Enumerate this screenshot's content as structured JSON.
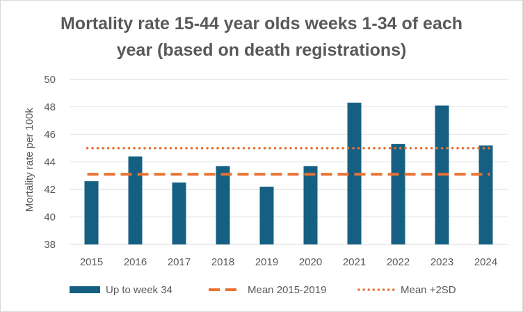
{
  "chart_data": {
    "type": "bar",
    "title_line1": "Mortality rate 15-44 year olds weeks 1-34 of each",
    "title_line2": "year (based on death registrations)",
    "ylabel": "Mortality rate per 100k",
    "xlabel": "",
    "ylim": [
      38,
      50
    ],
    "yticks": [
      38,
      40,
      42,
      44,
      46,
      48,
      50
    ],
    "grid": true,
    "legend_position": "bottom",
    "categories": [
      "2015",
      "2016",
      "2017",
      "2018",
      "2019",
      "2020",
      "2021",
      "2022",
      "2023",
      "2024"
    ],
    "series": [
      {
        "name": "Up to week 34",
        "kind": "bar",
        "color": "#156082",
        "values": [
          42.6,
          44.4,
          42.5,
          43.7,
          42.2,
          43.7,
          48.3,
          45.3,
          48.1,
          45.2
        ]
      },
      {
        "name": "Mean 2015-2019",
        "kind": "line-dashed",
        "color": "#E97132",
        "values": [
          43.1,
          43.1,
          43.1,
          43.1,
          43.1,
          43.1,
          43.1,
          43.1,
          43.1,
          43.1
        ]
      },
      {
        "name": "Mean +2SD",
        "kind": "line-dotted",
        "color": "#E97132",
        "values": [
          45.0,
          45.0,
          45.0,
          45.0,
          45.0,
          45.0,
          45.0,
          45.0,
          45.0,
          45.0
        ]
      }
    ]
  }
}
